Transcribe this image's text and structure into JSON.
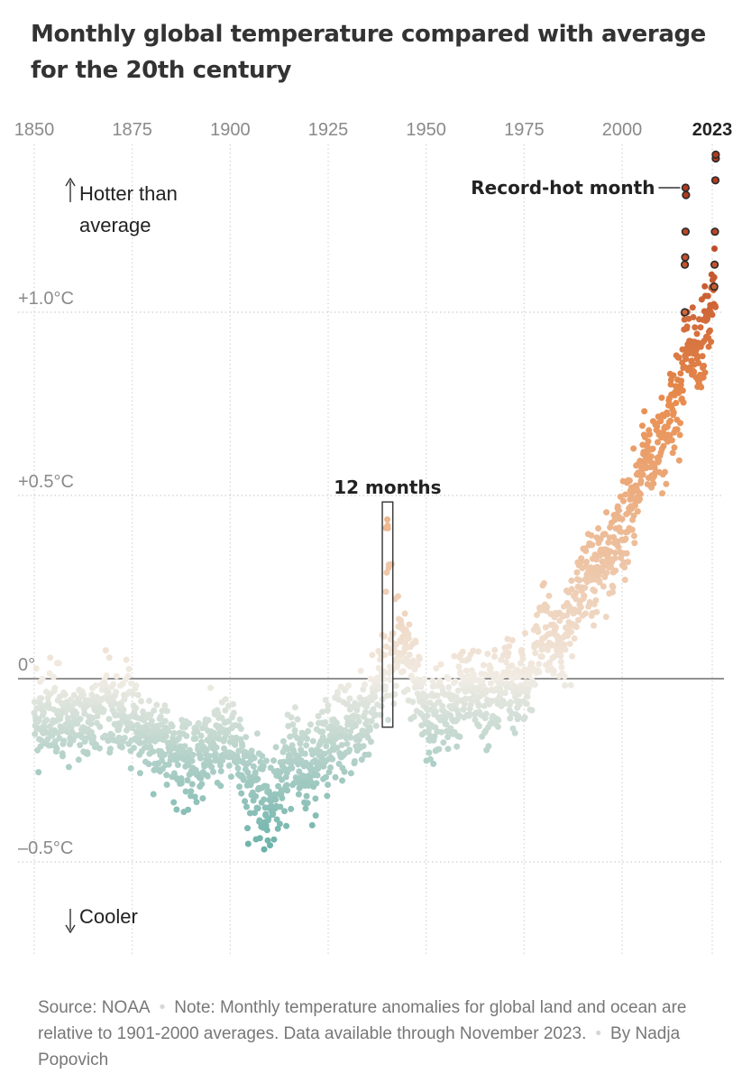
{
  "title": "Monthly global temperature compared with average for the 20th century",
  "footer": {
    "source": "Source: NOAA",
    "note": "Note: Monthly temperature anomalies for global land and ocean are relative to 1901-2000 averages. Data available through November 2023.",
    "byline": "By Nadja Popovich"
  },
  "chart_data": {
    "type": "scatter",
    "title": "Monthly global temperature compared with average for the 20th century",
    "xlabel": "",
    "ylabel": "",
    "xlim": [
      1850,
      2023
    ],
    "ylim": [
      -0.7,
      1.45
    ],
    "x_ticks": [
      "1850",
      "1875",
      "1900",
      "1925",
      "1950",
      "1975",
      "2000",
      "2023"
    ],
    "y_ticks": [
      {
        "value": 1.0,
        "label": "+1.0°C"
      },
      {
        "value": 0.5,
        "label": "+0.5°C"
      },
      {
        "value": 0,
        "label": "0°"
      },
      {
        "value": -0.5,
        "label": "–0.5°C"
      }
    ],
    "grid": {
      "vertical": true,
      "horizontal": true,
      "style": "dotted"
    },
    "color_scale": {
      "cold": "#3f9f96",
      "neutral": "#f1ece4",
      "warm": "#e98e4f",
      "hot": "#b23a1e"
    },
    "trend": [
      [
        1850,
        -0.1
      ],
      [
        1860,
        -0.12
      ],
      [
        1870,
        -0.08
      ],
      [
        1880,
        -0.16
      ],
      [
        1890,
        -0.23
      ],
      [
        1900,
        -0.15
      ],
      [
        1905,
        -0.28
      ],
      [
        1910,
        -0.36
      ],
      [
        1915,
        -0.22
      ],
      [
        1920,
        -0.24
      ],
      [
        1925,
        -0.19
      ],
      [
        1930,
        -0.13
      ],
      [
        1935,
        -0.12
      ],
      [
        1940,
        0.06
      ],
      [
        1944,
        0.12
      ],
      [
        1950,
        -0.12
      ],
      [
        1955,
        -0.08
      ],
      [
        1960,
        -0.02
      ],
      [
        1965,
        -0.05
      ],
      [
        1970,
        0.0
      ],
      [
        1975,
        -0.03
      ],
      [
        1980,
        0.13
      ],
      [
        1985,
        0.1
      ],
      [
        1990,
        0.28
      ],
      [
        1995,
        0.31
      ],
      [
        2000,
        0.38
      ],
      [
        2005,
        0.58
      ],
      [
        2010,
        0.65
      ],
      [
        2015,
        0.8
      ],
      [
        2016,
        0.92
      ],
      [
        2020,
        0.88
      ],
      [
        2023,
        1.05
      ]
    ],
    "spread": 0.085,
    "highlight_window": {
      "x_start": 1939.5,
      "x_end": 1941.5,
      "y_min": -0.12,
      "y_max": 0.47,
      "label": "12 months"
    },
    "record_months": [
      {
        "x": 2016.0,
        "y": 1.0
      },
      {
        "x": 2016.0,
        "y": 1.13
      },
      {
        "x": 2016.1,
        "y": 1.15
      },
      {
        "x": 2016.2,
        "y": 1.22
      },
      {
        "x": 2016.2,
        "y": 1.34
      },
      {
        "x": 2016.3,
        "y": 1.32
      },
      {
        "x": 2023.5,
        "y": 1.07
      },
      {
        "x": 2023.6,
        "y": 1.13
      },
      {
        "x": 2023.7,
        "y": 1.22
      },
      {
        "x": 2023.8,
        "y": 1.36
      },
      {
        "x": 2023.9,
        "y": 1.42
      },
      {
        "x": 2023.9,
        "y": 1.43
      }
    ],
    "annotations": [
      {
        "label": "Record-hot month",
        "x": 2016.2,
        "y": 1.34
      },
      {
        "label": "Hotter than average",
        "arrow": "up"
      },
      {
        "label": "Cooler",
        "arrow": "down"
      }
    ]
  }
}
